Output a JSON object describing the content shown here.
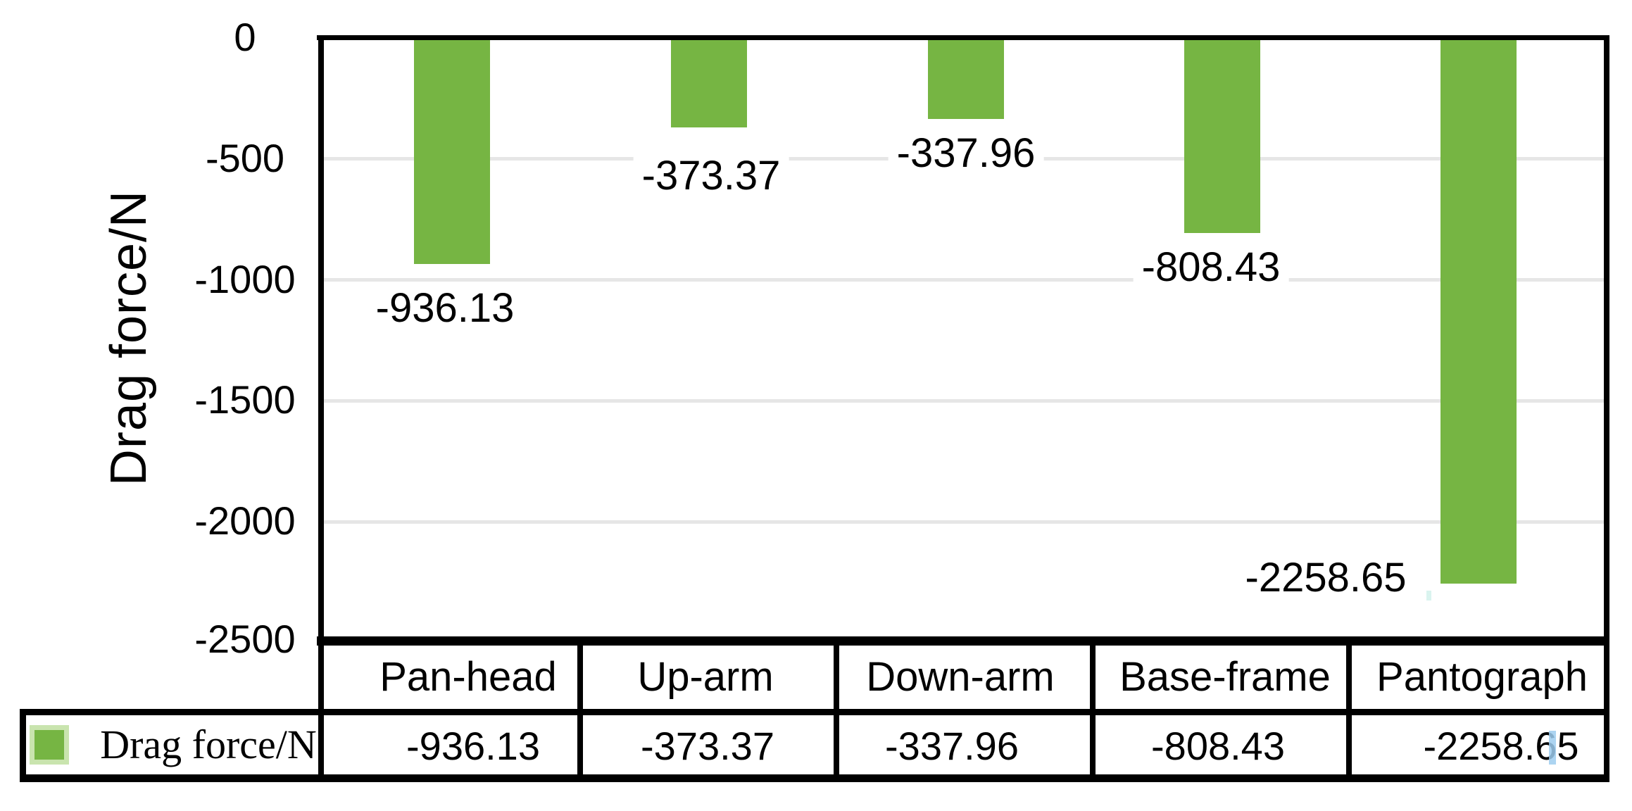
{
  "chart_data": {
    "type": "bar",
    "title": "",
    "categories": [
      "Pan-head",
      "Up-arm",
      "Down-arm",
      "Base-frame",
      "Pantograph"
    ],
    "series": [
      {
        "name": "Drag force/N",
        "values": [
          -936.13,
          -373.37,
          -337.96,
          -808.43,
          -2258.65
        ]
      }
    ],
    "data_labels": [
      "-936.13",
      "-373.37",
      "-337.96",
      "-808.43",
      "-2258.65"
    ],
    "xlabel": "",
    "ylabel": "Drag force/N",
    "ylim": [
      -2500,
      0
    ],
    "ytick_labels": [
      "0",
      "-500",
      "-1000",
      "-1500",
      "-2000",
      "-2500"
    ],
    "ytick_values": [
      0,
      -500,
      -1000,
      -1500,
      -2000,
      -2500
    ],
    "grid": "horizontal",
    "legend_position": "bottom-table-left",
    "bar_color": "#76b543"
  },
  "axis": {
    "title": "Drag force/N",
    "ticks": [
      "0",
      "-500",
      "-1000",
      "-1500",
      "-2000",
      "-2500"
    ]
  },
  "table": {
    "headers": [
      "Pan-head",
      "Up-arm",
      "Down-arm",
      "Base-frame",
      "Pantograph"
    ],
    "row_label": "Drag force/N",
    "values": [
      "-936.13",
      "-373.37",
      "-337.96",
      "-808.43",
      "-2258.65"
    ]
  },
  "colors": {
    "bar": "#76b543",
    "gridline": "#e6e6e6",
    "border": "#000000",
    "swatch_halo": "#c9e4ae",
    "cursor_artifact": "#9ecdef",
    "smudge_artifact": "#daf4ef"
  }
}
